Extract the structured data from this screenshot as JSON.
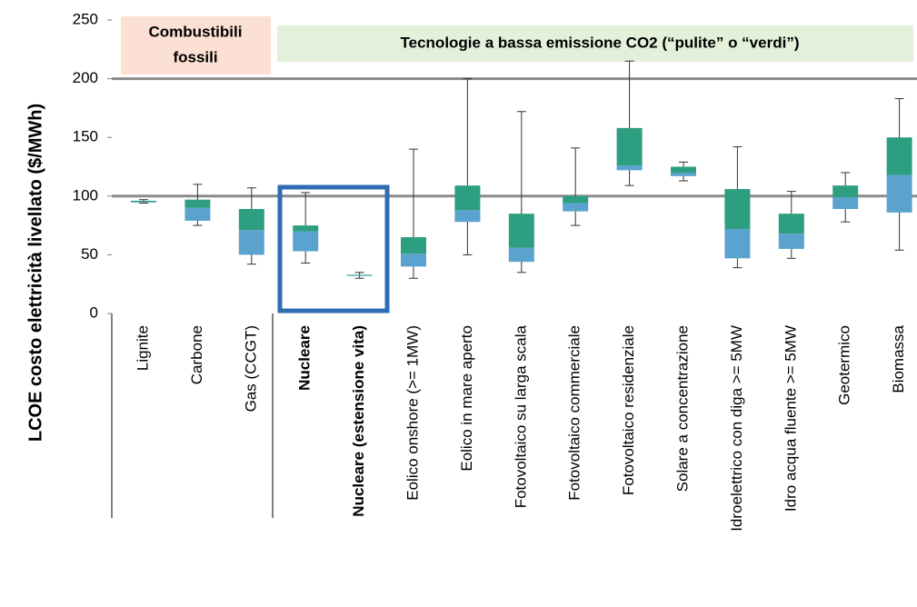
{
  "chart_data": {
    "type": "box",
    "y_label": "LCOE costo elettricità livellato ($/MWh)",
    "annotations": [
      "Combustibili",
      "fossili",
      "Tecnologie  a bassa emissione CO2 (“pulite” o “verdi”)"
    ],
    "categories": [
      "Lignite",
      "Carbone",
      "Gas (CCGT)",
      "Nucleare",
      "Nucleare (estensione vita)",
      "Eolico onshore (>= 1MW)",
      "Eolico in mare aperto",
      "Fotovoltaico su larga scala",
      "Fotovoltaico commerciale",
      "Fotovoltaico residenziale",
      "Solare a concentrazione",
      "Idroelettrico con diga >= 5MW",
      "Idro acqua fluente >= 5MW",
      "Geotermico",
      "Biomassa"
    ],
    "boxes": [
      {
        "min": 94,
        "q1": 94.5,
        "median": 95,
        "q3": 96,
        "max": 97
      },
      {
        "min": 75,
        "q1": 79,
        "median": 90,
        "q3": 97,
        "max": 110
      },
      {
        "min": 42,
        "q1": 50,
        "median": 71,
        "q3": 89,
        "max": 107
      },
      {
        "min": 43,
        "q1": 53,
        "median": 70,
        "q3": 75,
        "max": 103
      },
      {
        "min": 30,
        "q1": 32,
        "median": 32.5,
        "q3": 33,
        "max": 35
      },
      {
        "min": 30,
        "q1": 40,
        "median": 51,
        "q3": 65,
        "max": 140
      },
      {
        "min": 50,
        "q1": 78,
        "median": 88,
        "q3": 109,
        "max": 200
      },
      {
        "min": 35,
        "q1": 44,
        "median": 56,
        "q3": 85,
        "max": 172
      },
      {
        "min": 75,
        "q1": 87,
        "median": 94,
        "q3": 100,
        "max": 141
      },
      {
        "min": 109,
        "q1": 122,
        "median": 126,
        "q3": 158,
        "max": 215
      },
      {
        "min": 113,
        "q1": 117,
        "median": 120,
        "q3": 125,
        "max": 129
      },
      {
        "min": 39,
        "q1": 47,
        "median": 72,
        "q3": 106,
        "max": 142
      },
      {
        "min": 47,
        "q1": 55,
        "median": 68,
        "q3": 85,
        "max": 104
      },
      {
        "min": 78,
        "q1": 89,
        "median": 99,
        "q3": 109,
        "max": 120
      },
      {
        "min": 54,
        "q1": 86,
        "median": 118,
        "q3": 150,
        "max": 183
      }
    ],
    "lower_color": "#5ba3cf",
    "upper_color": "#2e9e80",
    "ylim": [
      0,
      250
    ],
    "yticks": [
      0,
      50,
      100,
      150,
      200,
      250
    ],
    "reference_lines": [
      100,
      200
    ]
  }
}
